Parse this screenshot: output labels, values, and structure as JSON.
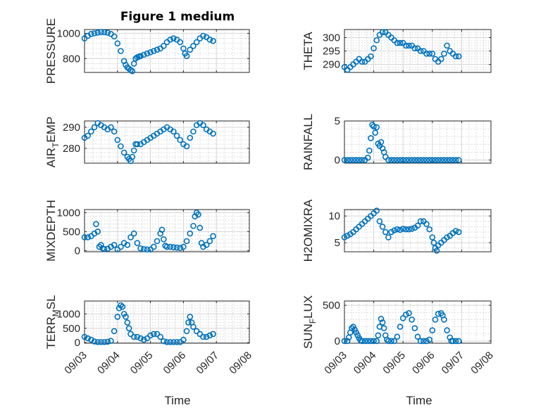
{
  "title": "Figure 1 medium",
  "chart_data": [
    {
      "type": "scatter",
      "ylabel": "PRESSURE",
      "ylim": [
        690,
        1030
      ],
      "yticks": [
        800,
        1000
      ],
      "ytick_labels": [
        "800",
        "1000"
      ],
      "series": [
        {
          "x": [
            0.0,
            0.1,
            0.2,
            0.3,
            0.4,
            0.5,
            0.6,
            0.7,
            0.8,
            0.9,
            1.0,
            1.1,
            1.2,
            1.25,
            1.3,
            1.35,
            1.4,
            1.45,
            1.5,
            1.55,
            1.6,
            1.65,
            1.7,
            1.8,
            1.9,
            2.0,
            2.1,
            2.2,
            2.3,
            2.4,
            2.5,
            2.6,
            2.7,
            2.8,
            2.9,
            3.0,
            3.05,
            3.1,
            3.2,
            3.3,
            3.4,
            3.5,
            3.6,
            3.7,
            3.8,
            3.9
          ],
          "y": [
            960,
            980,
            995,
            1000,
            1005,
            1010,
            1008,
            1005,
            995,
            975,
            920,
            860,
            780,
            750,
            730,
            720,
            710,
            700,
            760,
            800,
            810,
            815,
            820,
            830,
            840,
            850,
            860,
            870,
            880,
            900,
            930,
            950,
            960,
            950,
            930,
            880,
            840,
            820,
            870,
            900,
            930,
            960,
            980,
            970,
            950,
            940
          ]
        }
      ]
    },
    {
      "type": "scatter",
      "ylabel": "THETA",
      "ylim": [
        287,
        303
      ],
      "yticks": [
        290,
        295,
        300
      ],
      "ytick_labels": [
        "290",
        "295",
        "300"
      ],
      "series": [
        {
          "x": [
            0.0,
            0.1,
            0.2,
            0.3,
            0.4,
            0.5,
            0.6,
            0.7,
            0.8,
            0.9,
            1.0,
            1.1,
            1.2,
            1.3,
            1.4,
            1.5,
            1.6,
            1.7,
            1.8,
            1.9,
            2.0,
            2.1,
            2.2,
            2.3,
            2.4,
            2.5,
            2.6,
            2.7,
            2.8,
            2.9,
            3.0,
            3.1,
            3.2,
            3.3,
            3.4,
            3.5,
            3.6,
            3.7,
            3.8,
            3.9
          ],
          "y": [
            289,
            288,
            289,
            290,
            291,
            292,
            291,
            291,
            292,
            293,
            296,
            299,
            301,
            302,
            302,
            301,
            300,
            299,
            298,
            298,
            298,
            297,
            297,
            297,
            296,
            296,
            295,
            295,
            294,
            294,
            294,
            292,
            291,
            292,
            294,
            297,
            295,
            294,
            293,
            293
          ]
        }
      ]
    },
    {
      "type": "scatter",
      "ylabel": "AIR_TEMP",
      "ylim": [
        273,
        293
      ],
      "yticks": [
        280,
        290
      ],
      "ytick_labels": [
        "280",
        "290"
      ],
      "series": [
        {
          "x": [
            0.0,
            0.1,
            0.2,
            0.3,
            0.4,
            0.5,
            0.6,
            0.7,
            0.8,
            0.9,
            1.0,
            1.1,
            1.2,
            1.3,
            1.35,
            1.4,
            1.45,
            1.5,
            1.55,
            1.6,
            1.7,
            1.8,
            1.9,
            2.0,
            2.1,
            2.2,
            2.3,
            2.4,
            2.5,
            2.6,
            2.7,
            2.8,
            2.9,
            3.0,
            3.1,
            3.2,
            3.3,
            3.4,
            3.5,
            3.6,
            3.7,
            3.8,
            3.9
          ],
          "y": [
            285,
            286,
            288,
            290,
            292,
            291,
            290,
            289,
            290,
            288,
            284,
            281,
            278,
            276,
            275,
            274,
            276,
            279,
            282,
            282,
            282,
            283,
            284,
            285,
            286,
            287,
            288,
            289,
            290,
            289,
            288,
            286,
            284,
            282,
            281,
            285,
            288,
            291,
            292,
            291,
            289,
            288,
            287
          ]
        }
      ]
    },
    {
      "type": "scatter",
      "ylabel": "RAINFALL",
      "ylim": [
        -0.4,
        5
      ],
      "yticks": [
        0,
        5
      ],
      "ytick_labels": [
        "0",
        "5"
      ],
      "series": [
        {
          "x": [
            0.0,
            0.1,
            0.2,
            0.3,
            0.4,
            0.5,
            0.6,
            0.7,
            0.8,
            0.85,
            0.9,
            0.95,
            1.0,
            1.05,
            1.1,
            1.15,
            1.2,
            1.25,
            1.3,
            1.35,
            1.4,
            1.5,
            1.6,
            1.7,
            1.8,
            1.9,
            2.0,
            2.1,
            2.2,
            2.3,
            2.4,
            2.5,
            2.6,
            2.7,
            2.8,
            2.9,
            3.0,
            3.1,
            3.2,
            3.3,
            3.4,
            3.5,
            3.6,
            3.7,
            3.8,
            3.9
          ],
          "y": [
            0,
            0,
            0,
            0,
            0,
            0,
            0,
            0,
            0.3,
            1.2,
            2.8,
            4.5,
            4.3,
            3.5,
            4.2,
            2.1,
            1.8,
            2.3,
            1.5,
            1.0,
            0.4,
            0,
            0,
            0,
            0,
            0,
            0,
            0,
            0,
            0,
            0,
            0,
            0,
            0,
            0,
            0,
            0,
            0,
            0,
            0,
            0,
            0,
            0,
            0,
            0,
            0
          ]
        }
      ]
    },
    {
      "type": "scatter",
      "ylabel": "MIXDEPTH",
      "ylim": [
        -30,
        1080
      ],
      "yticks": [
        0,
        500,
        1000
      ],
      "ytick_labels": [
        "0",
        "500",
        "1000"
      ],
      "series": [
        {
          "x": [
            0.0,
            0.1,
            0.2,
            0.3,
            0.35,
            0.4,
            0.45,
            0.5,
            0.55,
            0.6,
            0.7,
            0.8,
            0.9,
            1.0,
            1.1,
            1.2,
            1.3,
            1.4,
            1.5,
            1.6,
            1.7,
            1.8,
            1.9,
            2.0,
            2.1,
            2.2,
            2.3,
            2.35,
            2.4,
            2.45,
            2.5,
            2.6,
            2.7,
            2.8,
            2.9,
            3.0,
            3.1,
            3.2,
            3.3,
            3.35,
            3.4,
            3.45,
            3.5,
            3.55,
            3.6,
            3.7,
            3.8,
            3.9
          ],
          "y": [
            350,
            350,
            380,
            450,
            700,
            500,
            100,
            150,
            60,
            40,
            50,
            100,
            150,
            30,
            100,
            200,
            150,
            350,
            450,
            200,
            60,
            40,
            30,
            30,
            100,
            250,
            450,
            550,
            300,
            130,
            100,
            100,
            90,
            80,
            70,
            100,
            250,
            450,
            650,
            900,
            1000,
            950,
            600,
            200,
            100,
            150,
            250,
            380
          ]
        }
      ]
    },
    {
      "type": "scatter",
      "ylabel": "H2OMIXRA",
      "ylim": [
        3.3,
        11.2
      ],
      "yticks": [
        5,
        10
      ],
      "ytick_labels": [
        "5",
        "10"
      ],
      "series": [
        {
          "x": [
            0.0,
            0.1,
            0.2,
            0.3,
            0.4,
            0.5,
            0.6,
            0.7,
            0.8,
            0.9,
            1.0,
            1.1,
            1.2,
            1.3,
            1.4,
            1.5,
            1.6,
            1.7,
            1.8,
            1.9,
            2.0,
            2.1,
            2.2,
            2.3,
            2.4,
            2.5,
            2.6,
            2.7,
            2.8,
            2.9,
            3.0,
            3.05,
            3.1,
            3.15,
            3.2,
            3.3,
            3.4,
            3.5,
            3.6,
            3.7,
            3.8,
            3.9
          ],
          "y": [
            6,
            6.3,
            6.6,
            7,
            7.5,
            8,
            8.5,
            9,
            9.5,
            10,
            10.5,
            11,
            9,
            8,
            7,
            6,
            7,
            7.3,
            7.5,
            7.4,
            7.6,
            7.5,
            7.5,
            7.6,
            7.8,
            8.2,
            9,
            9,
            8.5,
            7.5,
            6,
            5,
            4,
            3.5,
            4.5,
            5,
            5.5,
            6,
            6.3,
            6.8,
            7.2,
            7
          ]
        }
      ]
    },
    {
      "type": "scatter",
      "ylabel": "TERR_MSL",
      "ylim": [
        -20,
        1450
      ],
      "yticks": [
        0,
        500,
        1000
      ],
      "ytick_labels": [
        "0",
        "500",
        "1000"
      ],
      "series": [
        {
          "x": [
            0.0,
            0.1,
            0.2,
            0.3,
            0.4,
            0.5,
            0.6,
            0.7,
            0.8,
            0.9,
            1.0,
            1.05,
            1.1,
            1.15,
            1.2,
            1.25,
            1.3,
            1.35,
            1.4,
            1.5,
            1.6,
            1.7,
            1.8,
            1.9,
            2.0,
            2.1,
            2.2,
            2.3,
            2.4,
            2.5,
            2.6,
            2.7,
            2.8,
            2.9,
            3.0,
            3.1,
            3.15,
            3.2,
            3.25,
            3.3,
            3.4,
            3.5,
            3.6,
            3.7,
            3.8,
            3.9
          ],
          "y": [
            200,
            150,
            100,
            40,
            20,
            20,
            20,
            30,
            60,
            400,
            900,
            1200,
            1300,
            1250,
            1000,
            900,
            700,
            500,
            300,
            200,
            200,
            150,
            100,
            150,
            250,
            300,
            300,
            200,
            50,
            20,
            20,
            20,
            20,
            20,
            100,
            400,
            700,
            900,
            700,
            550,
            400,
            300,
            200,
            200,
            250,
            300
          ]
        }
      ]
    },
    {
      "type": "scatter",
      "ylabel": "SUN_FLUX",
      "ylim": [
        -30,
        560
      ],
      "yticks": [
        0,
        500
      ],
      "ytick_labels": [
        "0",
        "500"
      ],
      "series": [
        {
          "x": [
            0.0,
            0.1,
            0.15,
            0.2,
            0.25,
            0.3,
            0.35,
            0.4,
            0.45,
            0.5,
            0.55,
            0.6,
            0.7,
            0.8,
            0.9,
            1.0,
            1.1,
            1.15,
            1.2,
            1.25,
            1.3,
            1.35,
            1.4,
            1.45,
            1.5,
            1.6,
            1.7,
            1.8,
            1.9,
            2.0,
            2.1,
            2.2,
            2.3,
            2.4,
            2.5,
            2.6,
            2.7,
            2.8,
            2.9,
            3.0,
            3.1,
            3.2,
            3.3,
            3.35,
            3.4,
            3.5,
            3.6,
            3.65,
            3.7,
            3.8,
            3.9
          ],
          "y": [
            0,
            0,
            50,
            120,
            180,
            200,
            160,
            120,
            80,
            40,
            10,
            0,
            0,
            0,
            0,
            0,
            0,
            80,
            200,
            310,
            260,
            180,
            80,
            20,
            0,
            0,
            0,
            60,
            200,
            320,
            370,
            390,
            300,
            180,
            60,
            0,
            0,
            0,
            20,
            150,
            300,
            380,
            390,
            360,
            300,
            150,
            50,
            0,
            0,
            0,
            0
          ]
        }
      ]
    }
  ],
  "xaxis": {
    "tick_labels": [
      "09/03",
      "09/04",
      "09/05",
      "09/06",
      "09/07",
      "09/08"
    ],
    "xlabel": "Time"
  },
  "colors": {
    "marker": "#0072bd",
    "axes": "#262626"
  }
}
